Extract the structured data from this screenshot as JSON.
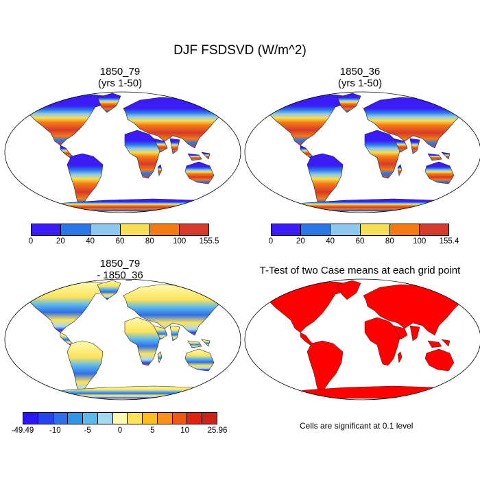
{
  "title": "DJF FSDSVD (W/m^2)",
  "panels": [
    {
      "title1": "1850_79",
      "title2": "(yrs 1-50)"
    },
    {
      "title1": "1850_36",
      "title2": "(yrs 1-50)"
    },
    {
      "title1": "1850_79",
      "title2": "- 1850_36"
    },
    {
      "title1": "T-Test of two Case means at each grid point",
      "title2": ""
    }
  ],
  "colorbar_abs": {
    "colors": [
      "#3b1cf6",
      "#2a78e8",
      "#8ec8ee",
      "#f6df52",
      "#f57a12",
      "#d63a2c"
    ],
    "labels_left": [
      "0",
      "20",
      "40",
      "60",
      "80",
      "100",
      "155.5"
    ],
    "labels_right": [
      "0",
      "20",
      "40",
      "60",
      "80",
      "100",
      "155.4"
    ]
  },
  "colorbar_diff": {
    "colors": [
      "#2c17f2",
      "#2743ee",
      "#2f6ee9",
      "#2f96e6",
      "#5cb9ea",
      "#a6d8ee",
      "#fffbb0",
      "#fde35c",
      "#fcbd1f",
      "#f9901b",
      "#ef5914",
      "#e0220f",
      "#cb221b"
    ],
    "labels": [
      "-49.49",
      "-10",
      "-5",
      "0",
      "5",
      "10",
      "25.96"
    ]
  },
  "ttest_note": "Cells are significant at 0.1 level"
}
